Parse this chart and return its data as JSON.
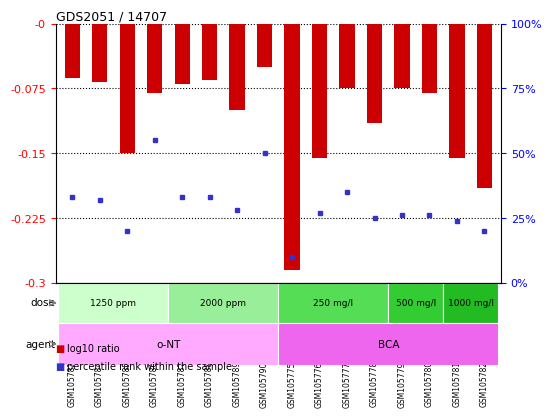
{
  "title": "GDS2051 / 14707",
  "samples": [
    "GSM105783",
    "GSM105784",
    "GSM105785",
    "GSM105786",
    "GSM105787",
    "GSM105788",
    "GSM105789",
    "GSM105790",
    "GSM105775",
    "GSM105776",
    "GSM105777",
    "GSM105778",
    "GSM105779",
    "GSM105780",
    "GSM105781",
    "GSM105782"
  ],
  "log10_ratio": [
    -0.063,
    -0.068,
    -0.15,
    -0.08,
    -0.07,
    -0.065,
    -0.1,
    -0.05,
    -0.285,
    -0.155,
    -0.075,
    -0.115,
    -0.075,
    -0.08,
    -0.155,
    -0.19
  ],
  "percentile_pct": [
    33,
    32,
    20,
    55,
    33,
    33,
    28,
    50,
    10,
    27,
    35,
    25,
    26,
    26,
    24,
    20
  ],
  "ylim_min": -0.3,
  "ylim_max": 0.0,
  "ytick_vals": [
    0.0,
    -0.075,
    -0.15,
    -0.225,
    -0.3
  ],
  "ytick_labels": [
    "-0",
    "-0.075",
    "-0.15",
    "-0.225",
    "-0.3"
  ],
  "right_pct": [
    100,
    75,
    50,
    25,
    0
  ],
  "bar_color": "#cc0000",
  "dot_color": "#3333cc",
  "bg_color": "#ffffff",
  "grid_color": "#000000",
  "dose_groups": [
    {
      "label": "1250 ppm",
      "start": 0,
      "end": 4,
      "color": "#ccffcc"
    },
    {
      "label": "2000 ppm",
      "start": 4,
      "end": 8,
      "color": "#99ee99"
    },
    {
      "label": "250 mg/l",
      "start": 8,
      "end": 12,
      "color": "#55dd55"
    },
    {
      "label": "500 mg/l",
      "start": 12,
      "end": 14,
      "color": "#33cc33"
    },
    {
      "label": "1000 mg/l",
      "start": 14,
      "end": 16,
      "color": "#22bb22"
    }
  ],
  "agent_groups": [
    {
      "label": "o-NT",
      "start": 0,
      "end": 8,
      "color": "#ffaaff"
    },
    {
      "label": "BCA",
      "start": 8,
      "end": 16,
      "color": "#ee66ee"
    }
  ],
  "legend_red_label": "log10 ratio",
  "legend_blue_label": "percentile rank within the sample"
}
